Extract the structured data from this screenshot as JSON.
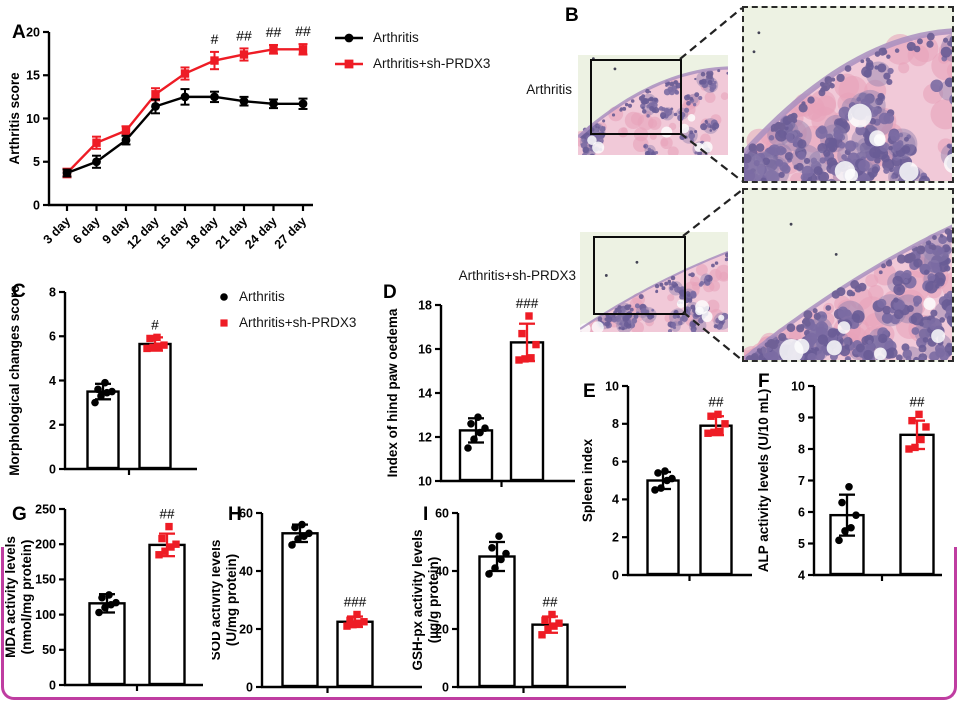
{
  "figure": {
    "background": "#ffffff",
    "frame_color": "#bf3da1"
  },
  "panel_b": {
    "label": "B",
    "rows": [
      {
        "label": "Arthritis"
      },
      {
        "label": "Arthritis+sh-PRDX3"
      }
    ]
  },
  "chart_data": [
    {
      "panel_label": "A",
      "type": "line",
      "ylabel": "Arthritis score",
      "ylim": [
        0,
        20
      ],
      "yticks": [
        0,
        5,
        10,
        15,
        20
      ],
      "categories": [
        "3 day",
        "6 day",
        "9 day",
        "12 day",
        "15 day",
        "18 day",
        "21 day",
        "24 day",
        "27 day"
      ],
      "series": [
        {
          "name": "Arthritis",
          "color": "#000000",
          "marker": "circle",
          "values": [
            3.7,
            5.0,
            7.5,
            11.4,
            12.5,
            12.5,
            12.0,
            11.7,
            11.7
          ],
          "errors": [
            0.4,
            0.7,
            0.5,
            0.8,
            0.9,
            0.6,
            0.5,
            0.5,
            0.6
          ]
        },
        {
          "name": "Arthritis+sh-PRDX3",
          "color": "#ee1c25",
          "marker": "square",
          "values": [
            3.7,
            7.2,
            8.6,
            12.8,
            15.2,
            16.7,
            17.4,
            18.0,
            18.0
          ],
          "errors": [
            0.5,
            0.7,
            0.5,
            0.7,
            0.7,
            1.0,
            0.7,
            0.5,
            0.6
          ]
        }
      ],
      "annotations": [
        {
          "category": "18 day",
          "text": "#"
        },
        {
          "category": "21 day",
          "text": "##"
        },
        {
          "category": "24 day",
          "text": "##"
        },
        {
          "category": "27 day",
          "text": "##"
        }
      ]
    },
    {
      "panel_label": "C",
      "type": "bar",
      "ylabel_lines": [
        "Morphological changes score"
      ],
      "ylim": [
        0,
        8
      ],
      "yticks": [
        0,
        2,
        4,
        6,
        8
      ],
      "bars": [
        {
          "group": "Arthritis",
          "mean": 3.5,
          "err": 0.35,
          "color": "#000000",
          "marker": "circle",
          "points": [
            3.0,
            3.3,
            3.45,
            3.5,
            3.6,
            3.9
          ],
          "annotation": ""
        },
        {
          "group": "Arthritis+sh-PRDX3",
          "mean": 5.65,
          "err": 0.3,
          "color": "#ee1c25",
          "marker": "square",
          "points": [
            5.45,
            5.5,
            5.55,
            5.6,
            5.9,
            5.95
          ],
          "annotation": "#"
        }
      ]
    },
    {
      "panel_label": "D",
      "type": "bar",
      "ylabel_lines": [
        "Index of hind paw oedema"
      ],
      "ylim": [
        10,
        18
      ],
      "yticks": [
        10,
        12,
        14,
        16,
        18
      ],
      "bars": [
        {
          "group": "Arthritis",
          "mean": 12.3,
          "err": 0.55,
          "color": "#000000",
          "marker": "circle",
          "points": [
            11.5,
            11.9,
            12.2,
            12.4,
            12.6,
            12.9
          ],
          "annotation": ""
        },
        {
          "group": "Arthritis+sh-PRDX3",
          "mean": 16.3,
          "err": 0.85,
          "color": "#ee1c25",
          "marker": "square",
          "points": [
            15.5,
            15.55,
            15.6,
            16.2,
            16.7,
            17.5
          ],
          "annotation": "###"
        }
      ]
    },
    {
      "panel_label": "E",
      "type": "bar",
      "ylabel_lines": [
        "Spleen index"
      ],
      "ylim": [
        0,
        10
      ],
      "yticks": [
        0,
        2,
        4,
        6,
        8,
        10
      ],
      "bars": [
        {
          "group": "Arthritis",
          "mean": 5.0,
          "err": 0.45,
          "color": "#000000",
          "marker": "circle",
          "points": [
            4.5,
            4.6,
            5.0,
            5.1,
            5.4,
            5.5
          ],
          "annotation": ""
        },
        {
          "group": "Arthritis+sh-PRDX3",
          "mean": 7.9,
          "err": 0.5,
          "color": "#ee1c25",
          "marker": "square",
          "points": [
            7.5,
            7.55,
            7.6,
            8.0,
            8.4,
            8.5
          ],
          "annotation": "##"
        }
      ]
    },
    {
      "panel_label": "F",
      "type": "bar",
      "ylabel_lines": [
        "ALP activity levels (U/10 mL)"
      ],
      "ylim": [
        4,
        10
      ],
      "yticks": [
        4,
        5,
        6,
        7,
        8,
        9,
        10
      ],
      "bars": [
        {
          "group": "Arthritis",
          "mean": 5.9,
          "err": 0.65,
          "color": "#000000",
          "marker": "circle",
          "points": [
            5.1,
            5.4,
            5.5,
            5.9,
            6.3,
            6.8
          ],
          "annotation": ""
        },
        {
          "group": "Arthritis+sh-PRDX3",
          "mean": 8.45,
          "err": 0.45,
          "color": "#ee1c25",
          "marker": "square",
          "points": [
            8.0,
            8.05,
            8.3,
            8.7,
            8.9,
            9.1
          ],
          "annotation": "##"
        }
      ]
    },
    {
      "panel_label": "G",
      "type": "bar",
      "ylabel_lines": [
        "MDA activity levels",
        "(nmol/mg protein)"
      ],
      "ylim": [
        0,
        250
      ],
      "yticks": [
        0,
        50,
        100,
        150,
        200,
        250
      ],
      "bars": [
        {
          "group": "Arthritis",
          "mean": 116,
          "err": 13,
          "color": "#000000",
          "marker": "circle",
          "points": [
            103,
            110,
            114,
            117,
            124,
            128
          ],
          "annotation": ""
        },
        {
          "group": "Arthritis+sh-PRDX3",
          "mean": 199,
          "err": 16,
          "color": "#ee1c25",
          "marker": "square",
          "points": [
            185,
            190,
            196,
            200,
            208,
            225
          ],
          "annotation": "##"
        }
      ]
    },
    {
      "panel_label": "H",
      "type": "bar",
      "ylabel_lines": [
        "SOD activity levels",
        "(U/mg protein)"
      ],
      "ylim": [
        0,
        60
      ],
      "yticks": [
        0,
        20,
        40,
        60
      ],
      "bars": [
        {
          "group": "Arthritis",
          "mean": 53,
          "err": 3,
          "color": "#000000",
          "marker": "circle",
          "points": [
            49,
            51,
            52,
            53,
            55,
            56
          ],
          "annotation": ""
        },
        {
          "group": "Arthritis+sh-PRDX3",
          "mean": 22.5,
          "err": 1.8,
          "color": "#ee1c25",
          "marker": "square",
          "points": [
            21,
            21.5,
            22,
            22.5,
            23,
            25
          ],
          "annotation": "###"
        }
      ]
    },
    {
      "panel_label": "I",
      "type": "bar",
      "ylabel_lines": [
        "GSH-px activity levels",
        "(µg/g protein)"
      ],
      "ylim": [
        0,
        60
      ],
      "yticks": [
        0,
        20,
        40,
        60
      ],
      "bars": [
        {
          "group": "Arthritis",
          "mean": 45,
          "err": 5,
          "color": "#000000",
          "marker": "circle",
          "points": [
            39,
            41,
            44,
            46,
            48,
            52
          ],
          "annotation": ""
        },
        {
          "group": "Arthritis+sh-PRDX3",
          "mean": 21.5,
          "err": 2.8,
          "color": "#ee1c25",
          "marker": "square",
          "points": [
            18,
            20,
            21,
            22,
            23,
            25
          ],
          "annotation": "##"
        }
      ]
    }
  ]
}
